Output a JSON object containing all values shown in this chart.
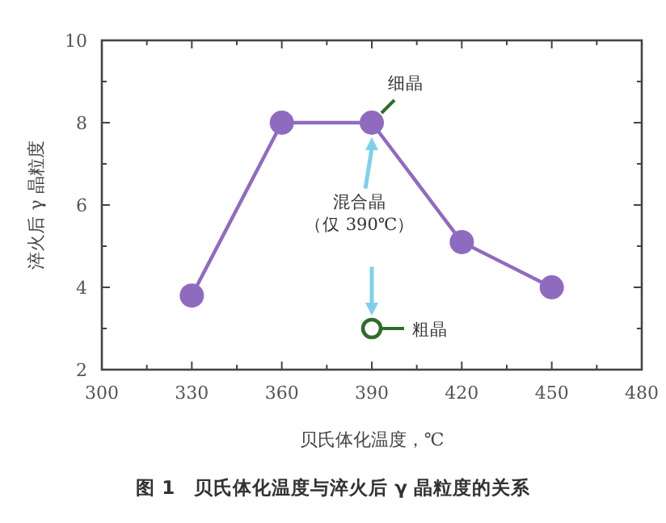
{
  "chart_data": {
    "type": "line",
    "title": "图 1　贝氏体化温度与淬火后 γ 晶粒度的关系",
    "xlabel": "贝氏体化温度，℃",
    "ylabel": "淬火后 γ 晶粒度",
    "xlim": [
      300,
      480
    ],
    "xticks": [
      300,
      330,
      360,
      390,
      420,
      450,
      480
    ],
    "ylim": [
      2,
      10
    ],
    "yticks": [
      2,
      4,
      6,
      8,
      10
    ],
    "grid": false,
    "marker": "circle",
    "line_style": "solid",
    "series": [
      {
        "color": "#8f6bc0",
        "x": [
          330,
          360,
          390,
          420,
          450
        ],
        "values": [
          3.8,
          8,
          8,
          5.1,
          4
        ]
      },
      {
        "type": "scatter",
        "color": "#2f6e2a",
        "x": [
          390
        ],
        "values": [
          3
        ]
      }
    ],
    "annotations": [
      {
        "text": "细晶",
        "x": 390,
        "y": 8
      },
      {
        "text": "粗晶",
        "x": 390,
        "y": 3
      },
      "混合晶",
      "（仅 390℃）"
    ]
  }
}
